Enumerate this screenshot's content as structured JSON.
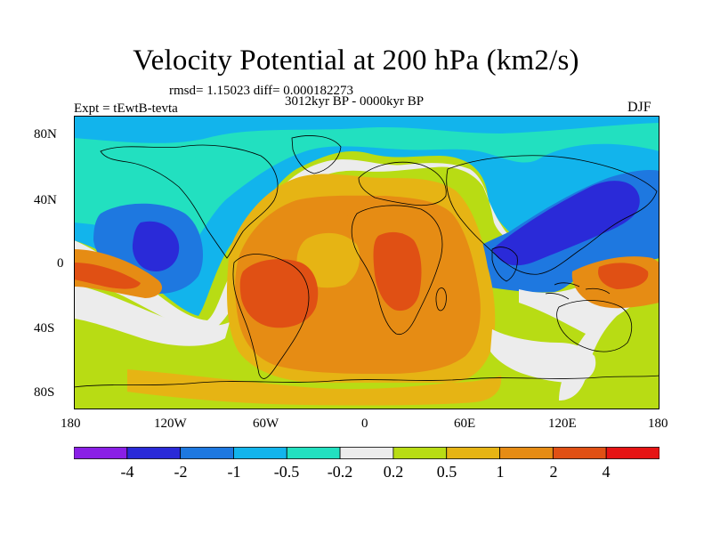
{
  "title": "Velocity Potential at 200 hPa (km2/s)",
  "stats": "rmsd= 1.15023 diff= 0.000182273",
  "period": "3012kyr BP - 0000kyr BP",
  "experiment": "Expt = tEwtB-tevta",
  "season": "DJF",
  "y_ticks": [
    "80N",
    "40N",
    "0",
    "40S",
    "80S"
  ],
  "x_ticks": [
    "180",
    "120W",
    "60W",
    "0",
    "60E",
    "120E",
    "180"
  ],
  "colorbar": {
    "labels": [
      "-4",
      "-2",
      "-1",
      "-0.5",
      "-0.2",
      "0.2",
      "0.5",
      "1",
      "2",
      "4"
    ],
    "colors": [
      "#8a1fe6",
      "#2a2ad8",
      "#1e78e0",
      "#12b4ec",
      "#22e0c0",
      "#ececec",
      "#b8dc14",
      "#e6b414",
      "#e68c14",
      "#e05014",
      "#e61414"
    ]
  },
  "field_colors": {
    "neg3": "#2a2ad8",
    "neg2": "#1e78e0",
    "neg1": "#12b4ec",
    "neg0": "#22e0c0",
    "neutral": "#ececec",
    "pos1": "#b8dc14",
    "pos2": "#e6b414",
    "pos3": "#e68c14",
    "pos4": "#e05014"
  }
}
